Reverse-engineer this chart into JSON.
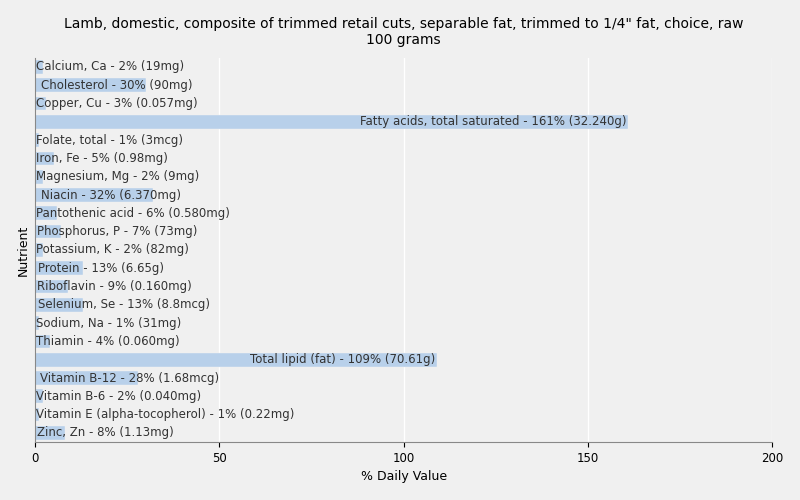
{
  "title": "Lamb, domestic, composite of trimmed retail cuts, separable fat, trimmed to 1/4\" fat, choice, raw\n100 grams",
  "xlabel": "% Daily Value",
  "ylabel": "Nutrient",
  "xlim": [
    0,
    200
  ],
  "xticks": [
    0,
    50,
    100,
    150,
    200
  ],
  "background_color": "#f0f0f0",
  "bar_color": "#b8d0ea",
  "nutrients": [
    "Calcium, Ca - 2% (19mg)",
    "Cholesterol - 30% (90mg)",
    "Copper, Cu - 3% (0.057mg)",
    "Fatty acids, total saturated - 161% (32.240g)",
    "Folate, total - 1% (3mcg)",
    "Iron, Fe - 5% (0.98mg)",
    "Magnesium, Mg - 2% (9mg)",
    "Niacin - 32% (6.370mg)",
    "Pantothenic acid - 6% (0.580mg)",
    "Phosphorus, P - 7% (73mg)",
    "Potassium, K - 2% (82mg)",
    "Protein - 13% (6.65g)",
    "Riboflavin - 9% (0.160mg)",
    "Selenium, Se - 13% (8.8mcg)",
    "Sodium, Na - 1% (31mg)",
    "Thiamin - 4% (0.060mg)",
    "Total lipid (fat) - 109% (70.61g)",
    "Vitamin B-12 - 28% (1.68mcg)",
    "Vitamin B-6 - 2% (0.040mg)",
    "Vitamin E (alpha-tocopherol) - 1% (0.22mg)",
    "Zinc, Zn - 8% (1.13mg)"
  ],
  "values": [
    2,
    30,
    3,
    161,
    1,
    5,
    2,
    32,
    6,
    7,
    2,
    13,
    9,
    13,
    1,
    4,
    109,
    28,
    2,
    1,
    8
  ],
  "title_fontsize": 10,
  "axis_fontsize": 9,
  "tick_fontsize": 8.5,
  "label_fontsize": 8.5
}
